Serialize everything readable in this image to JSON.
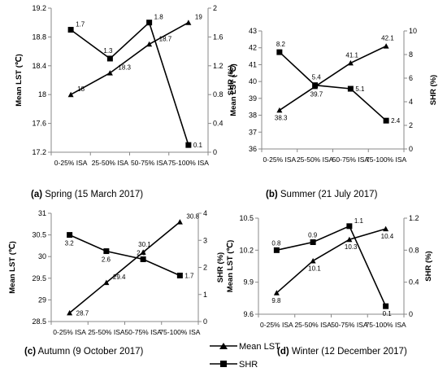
{
  "chart_data": [
    {
      "type": "line",
      "caption_letter": "(a)",
      "caption_text": "Spring (15 March 2017)",
      "categories": [
        "0-25% ISA",
        "25-50% ISA",
        "50-75% ISA",
        "75-100% ISA"
      ],
      "ylabel": "Mean LST (℃)",
      "y2label": "SHR (%)",
      "ylim": [
        17.2,
        19.2
      ],
      "yticks": [
        "17.2",
        "17.6",
        "18",
        "18.4",
        "18.8",
        "19.2"
      ],
      "y2lim": [
        0,
        2
      ],
      "y2ticks": [
        "0",
        "0.4",
        "0.8",
        "1.2",
        "1.6",
        "2"
      ],
      "series": [
        {
          "name": "Mean LST",
          "axis": "left",
          "marker": "triangle",
          "values": [
            18,
            18.3,
            18.7,
            19
          ],
          "labels": [
            "18",
            "18.3",
            "18.7",
            "19"
          ]
        },
        {
          "name": "SHR",
          "axis": "right",
          "marker": "square",
          "values": [
            1.7,
            1.3,
            1.8,
            0.1
          ],
          "labels": [
            "1.7",
            "1.3",
            "1.8",
            "0.1"
          ]
        }
      ]
    },
    {
      "type": "line",
      "caption_letter": "(b)",
      "caption_text": "Summer (21 July 2017)",
      "categories": [
        "0-25% ISA",
        "25-50% ISA",
        "50-75% ISA",
        "75-100% ISA"
      ],
      "ylabel": "Mean LST (℃)",
      "y2label": "SHR (%)",
      "ylim": [
        36,
        43
      ],
      "yticks": [
        "36",
        "37",
        "38",
        "39",
        "40",
        "41",
        "42",
        "43"
      ],
      "y2lim": [
        0,
        10
      ],
      "y2ticks": [
        "0",
        "2",
        "4",
        "6",
        "8",
        "10"
      ],
      "series": [
        {
          "name": "Mean LST",
          "axis": "left",
          "marker": "triangle",
          "values": [
            38.3,
            39.7,
            41.1,
            42.1
          ],
          "labels": [
            "38.3",
            "39.7",
            "41.1",
            "42.1"
          ]
        },
        {
          "name": "SHR",
          "axis": "right",
          "marker": "square",
          "values": [
            8.2,
            5.4,
            5.1,
            2.4
          ],
          "labels": [
            "8.2",
            "5.4",
            "5.1",
            "2.4"
          ]
        }
      ]
    },
    {
      "type": "line",
      "caption_letter": "(c)",
      "caption_text": "Autumn (9 October 2017)",
      "categories": [
        "0-25% ISA",
        "25-50% ISA",
        "50-75% ISA",
        "75-100% ISA"
      ],
      "ylabel": "Mean LST (℃)",
      "y2label": "SHR (%)",
      "ylim": [
        28.5,
        31
      ],
      "yticks": [
        "28.5",
        "29",
        "29.5",
        "30",
        "30.5",
        "31"
      ],
      "y2lim": [
        0,
        4
      ],
      "y2ticks": [
        "0",
        "1",
        "2",
        "3",
        "4"
      ],
      "series": [
        {
          "name": "Mean LST",
          "axis": "left",
          "marker": "triangle",
          "values": [
            28.7,
            29.4,
            30.1,
            30.8
          ],
          "labels": [
            "28.7",
            "29.4",
            "30.1",
            "30.8"
          ]
        },
        {
          "name": "SHR",
          "axis": "right",
          "marker": "square",
          "values": [
            3.2,
            2.6,
            2.3,
            1.7
          ],
          "labels": [
            "3.2",
            "2.6",
            "2.3",
            "1.7"
          ]
        }
      ]
    },
    {
      "type": "line",
      "caption_letter": "(d)",
      "caption_text": "Winter (12 December 2017)",
      "categories": [
        "0-25% ISA",
        "25-50% ISA",
        "50-75% ISA",
        "75-100% ISA"
      ],
      "ylabel": "Mean LST (℃)",
      "y2label": "SHR (%)",
      "ylim": [
        9.6,
        10.5
      ],
      "yticks": [
        "9.6",
        "9.9",
        "10.2",
        "10.5"
      ],
      "y2lim": [
        0,
        1.2
      ],
      "y2ticks": [
        "0",
        "0.4",
        "0.8",
        "1.2"
      ],
      "series": [
        {
          "name": "Mean LST",
          "axis": "left",
          "marker": "triangle",
          "values": [
            9.8,
            10.1,
            10.3,
            10.4
          ],
          "labels": [
            "9.8",
            "10.1",
            "10.3",
            "10.4"
          ]
        },
        {
          "name": "SHR",
          "axis": "right",
          "marker": "square",
          "values": [
            0.8,
            0.9,
            1.1,
            0.1
          ],
          "labels": [
            "0.8",
            "0.9",
            "1.1",
            "0.1"
          ]
        }
      ]
    }
  ],
  "legend": {
    "items": [
      {
        "label": "Mean LST",
        "marker": "triangle"
      },
      {
        "label": "SHR",
        "marker": "square"
      }
    ]
  }
}
